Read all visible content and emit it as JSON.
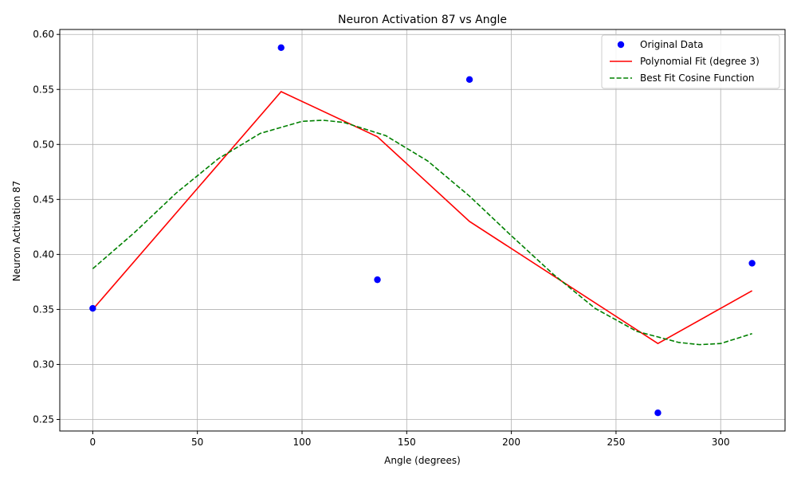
{
  "chart_data": {
    "type": "line",
    "title": "Neuron Activation 87 vs Angle",
    "xlabel": "Angle (degrees)",
    "ylabel": "Neuron Activation 87",
    "xlim": [
      -15.75,
      330.75
    ],
    "ylim": [
      0.2395,
      0.6045
    ],
    "xticks": [
      0,
      50,
      100,
      150,
      200,
      250,
      300
    ],
    "yticks": [
      0.25,
      0.3,
      0.35,
      0.4,
      0.45,
      0.5,
      0.55,
      0.6
    ],
    "grid": true,
    "legend_position": "top-right",
    "series": [
      {
        "name": "Original Data",
        "kind": "scatter",
        "color": "#0000ff",
        "x": [
          0,
          90,
          136,
          180,
          270,
          315
        ],
        "y": [
          0.351,
          0.588,
          0.377,
          0.559,
          0.256,
          0.392
        ]
      },
      {
        "name": "Polynomial Fit (degree 3)",
        "kind": "line",
        "color": "#ff0000",
        "dash": "solid",
        "x": [
          0,
          90,
          136,
          180,
          270,
          315
        ],
        "y": [
          0.35,
          0.548,
          0.507,
          0.43,
          0.319,
          0.367
        ]
      },
      {
        "name": "Best Fit Cosine Function",
        "kind": "line",
        "color": "#008000",
        "dash": "dashed",
        "x": [
          0,
          20,
          40,
          60,
          80,
          100,
          110,
          120,
          140,
          160,
          180,
          200,
          220,
          240,
          260,
          280,
          290,
          300,
          315
        ],
        "y": [
          0.387,
          0.42,
          0.456,
          0.487,
          0.51,
          0.521,
          0.522,
          0.52,
          0.508,
          0.485,
          0.453,
          0.417,
          0.382,
          0.351,
          0.33,
          0.32,
          0.318,
          0.319,
          0.328
        ]
      }
    ]
  }
}
